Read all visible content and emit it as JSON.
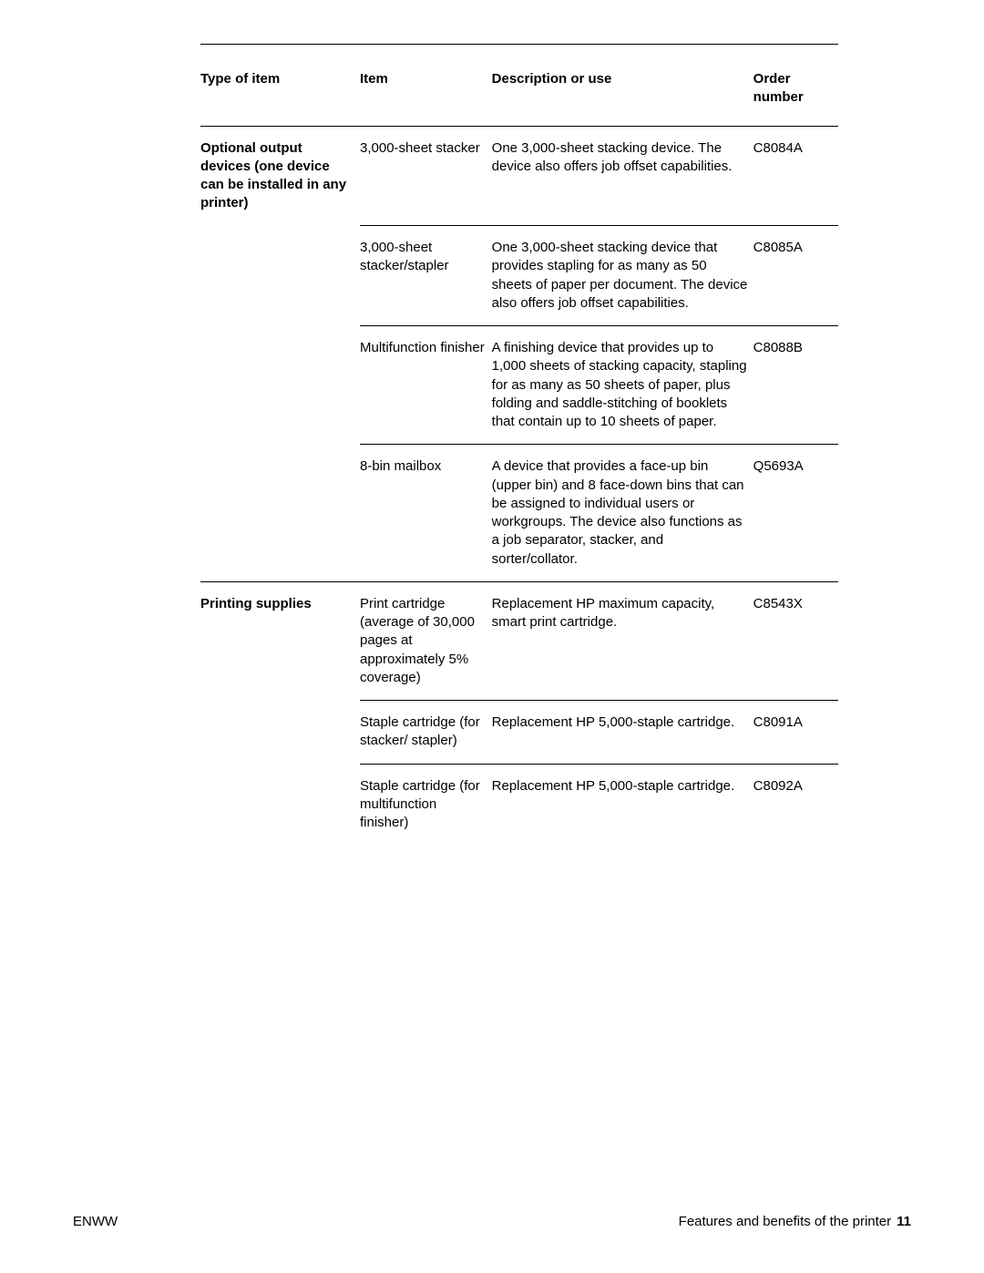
{
  "table": {
    "headers": {
      "type": "Type of item",
      "item": "Item",
      "desc": "Description or use",
      "order": "Order number"
    },
    "groups": [
      {
        "label": "Optional output devices (one device can be installed in any printer)",
        "rows": [
          {
            "item": "3,000-sheet stacker",
            "desc": "One 3,000-sheet stacking device. The device also offers job offset capabilities.",
            "order": "C8084A"
          },
          {
            "item": "3,000-sheet stacker/stapler",
            "desc": "One 3,000-sheet stacking device that provides stapling for as many as 50 sheets of paper per document. The device also offers job offset capabilities.",
            "order": "C8085A"
          },
          {
            "item": "Multifunction finisher",
            "desc": "A finishing device that provides up to 1,000 sheets of stacking capacity, stapling for as many as 50 sheets of paper, plus folding and saddle-stitching of booklets that contain up to 10 sheets of paper.",
            "order": "C8088B"
          },
          {
            "item": "8-bin mailbox",
            "desc": "A device that provides a face-up bin (upper bin) and 8 face-down bins that can be assigned to individual users or workgroups. The device also functions as a job separator, stacker, and sorter/collator.",
            "order": "Q5693A"
          }
        ]
      },
      {
        "label": "Printing supplies",
        "rows": [
          {
            "item": "Print cartridge (average of 30,000 pages at approximately 5% coverage)",
            "desc": "Replacement HP maximum capacity, smart print cartridge.",
            "order": "C8543X"
          },
          {
            "item": "Staple cartridge (for stacker/ stapler)",
            "desc": "Replacement HP 5,000-staple cartridge.",
            "order": "C8091A"
          },
          {
            "item": "Staple cartridge (for multifunction finisher)",
            "desc": "Replacement HP 5,000-staple cartridge.",
            "order": "C8092A"
          }
        ]
      }
    ]
  },
  "footer": {
    "left": "ENWW",
    "right_text": "Features and benefits of the printer",
    "page_number": "11"
  }
}
